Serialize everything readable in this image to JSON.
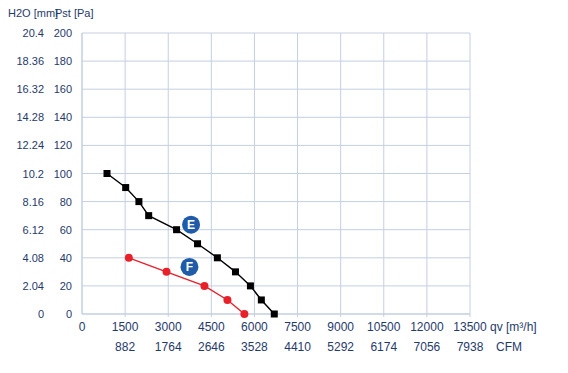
{
  "chart_data": {
    "type": "line",
    "ylabel": "Pst [Pa]",
    "y2label": "H2O [mm]",
    "xlabel": "qv [m³/h]",
    "x2label": "CFM",
    "xlim": [
      0,
      13500
    ],
    "xticks": [
      0,
      1500,
      3000,
      4500,
      6000,
      7500,
      9000,
      10500,
      12000,
      13500
    ],
    "x2lim": [
      0,
      7938
    ],
    "x2ticks": [
      882,
      1764,
      2646,
      3528,
      4410,
      5292,
      6174,
      7056,
      7938
    ],
    "ylim": [
      0,
      200
    ],
    "yticks": [
      0,
      20,
      40,
      60,
      80,
      100,
      120,
      140,
      160,
      180,
      200
    ],
    "y2lim": [
      0,
      20.4
    ],
    "y2ticks": [
      0,
      2.04,
      4.08,
      6.12,
      8.16,
      10.2,
      12.24,
      14.28,
      16.32,
      18.36,
      20.4
    ],
    "grid": true,
    "series": [
      {
        "name": "E",
        "color": "#000000",
        "marker": "square",
        "x": [
          870,
          1520,
          1980,
          2320,
          3290,
          4020,
          4710,
          5340,
          5860,
          6240,
          6690
        ],
        "values": [
          100,
          90,
          80,
          70,
          60,
          50,
          40,
          30,
          20,
          10,
          0
        ]
      },
      {
        "name": "F",
        "color": "#e8202a",
        "marker": "circle",
        "x": [
          1630,
          2940,
          4260,
          5060,
          5650
        ],
        "values": [
          40,
          30,
          20,
          10,
          0
        ]
      }
    ]
  }
}
